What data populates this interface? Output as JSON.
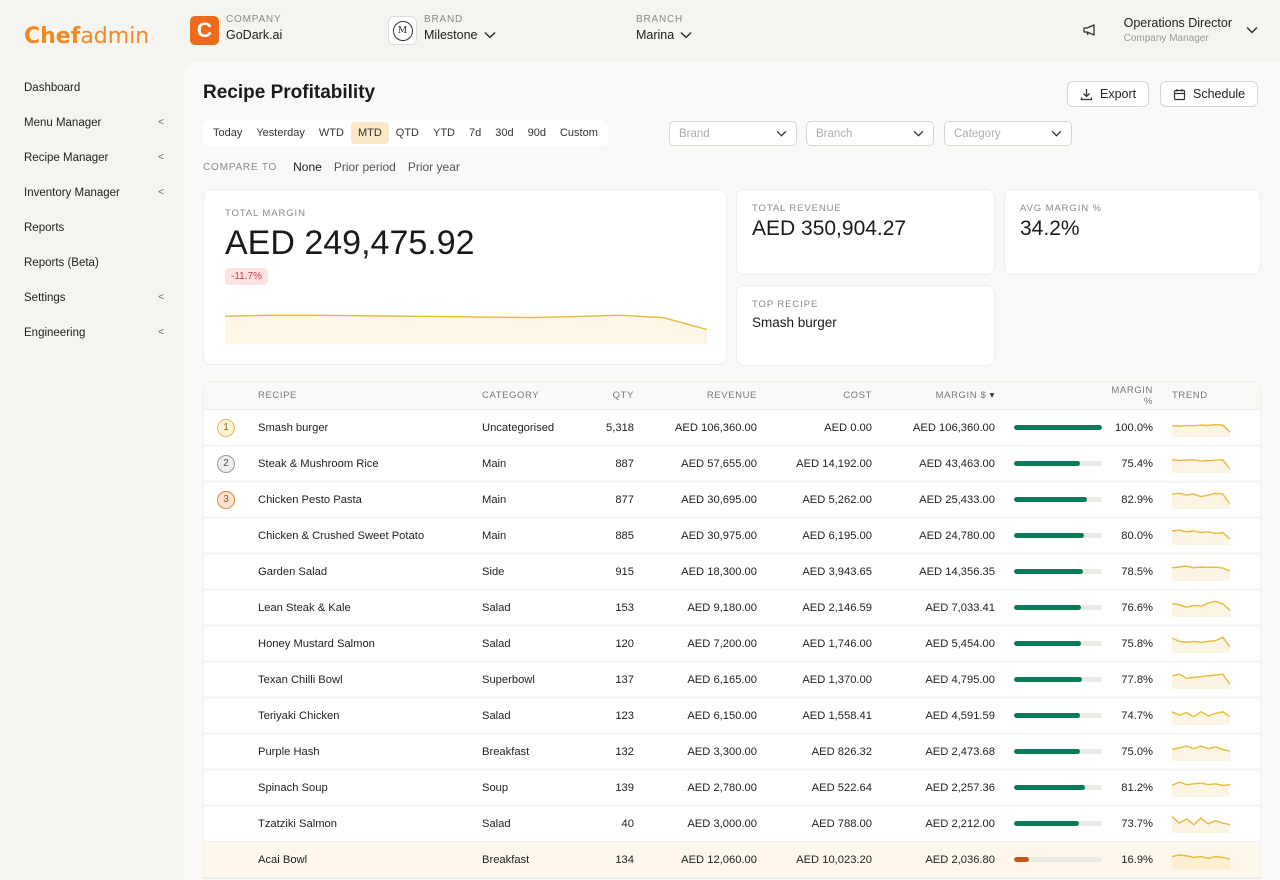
{
  "app": {
    "logo_bold": "Chef",
    "logo_light": "admin"
  },
  "sidebar": {
    "items": [
      {
        "label": "Dashboard",
        "chevron": ""
      },
      {
        "label": "Menu Manager",
        "chevron": "<"
      },
      {
        "label": "Recipe Manager",
        "chevron": "<"
      },
      {
        "label": "Inventory Manager",
        "chevron": "<"
      },
      {
        "label": "Reports",
        "chevron": ""
      },
      {
        "label": "Reports (Beta)",
        "chevron": ""
      },
      {
        "label": "Settings",
        "chevron": "<"
      },
      {
        "label": "Engineering",
        "chevron": "<"
      }
    ]
  },
  "header": {
    "company_label": "COMPANY",
    "company_icon": "C",
    "company_value": "GoDark.ai",
    "brand_label": "BRAND",
    "brand_logo": "M",
    "brand_value": "Milestone",
    "branch_label": "BRANCH",
    "branch_value": "Marina",
    "user_name": "Operations Director",
    "user_role": "Company Manager"
  },
  "page": {
    "title": "Recipe Profitability",
    "export_label": "Export",
    "schedule_label": "Schedule",
    "periods": [
      "Today",
      "Yesterday",
      "WTD",
      "MTD",
      "QTD",
      "YTD",
      "7d",
      "30d",
      "90d",
      "Custom"
    ],
    "active_period": "MTD",
    "filters": {
      "brand_placeholder": "Brand",
      "branch_placeholder": "Branch",
      "category_placeholder": "Category"
    },
    "compare_label": "COMPARE TO",
    "compare_options": [
      "None",
      "Prior period",
      "Prior year"
    ],
    "active_compare": "None"
  },
  "kpis": {
    "total_margin_label": "TOTAL MARGIN",
    "total_margin_value": "AED 249,475.92",
    "total_margin_delta": "-11.7%",
    "total_revenue_label": "TOTAL REVENUE",
    "total_revenue_value": "AED 350,904.27",
    "avg_margin_label": "AVG MARGIN %",
    "avg_margin_value": "34.2%",
    "top_recipe_label": "TOP RECIPE",
    "top_recipe_value": "Smash burger",
    "sparkline": [
      0.58,
      0.6,
      0.6,
      0.59,
      0.58,
      0.57,
      0.56,
      0.55,
      0.57,
      0.6,
      0.55,
      0.3
    ]
  },
  "colors": {
    "accent": "#f08a24",
    "bar_good": "#0b7a5a",
    "bar_low": "#c7561b",
    "spark": "#e9b93a"
  },
  "table": {
    "headers": {
      "recipe": "RECIPE",
      "category": "CATEGORY",
      "qty": "QTY",
      "revenue": "REVENUE",
      "cost": "COST",
      "margin": "MARGIN $",
      "sort_icon": "▾",
      "margin_pct": "MARGIN %",
      "trend": "TREND"
    },
    "rows": [
      {
        "rank": "1",
        "recipe": "Smash burger",
        "category": "Uncategorised",
        "qty": "5,318",
        "revenue": "AED 106,360.00",
        "cost": "AED 0.00",
        "margin": "AED 106,360.00",
        "pct": "100.0%",
        "pct_value": 100.0,
        "trend": [
          0.5,
          0.55,
          0.5,
          0.52,
          0.48,
          0.5,
          0.45,
          0.48,
          0.9
        ]
      },
      {
        "rank": "2",
        "recipe": "Steak & Mushroom Rice",
        "category": "Main",
        "qty": "887",
        "revenue": "AED 57,655.00",
        "cost": "AED 14,192.00",
        "margin": "AED 43,463.00",
        "pct": "75.4%",
        "pct_value": 75.4,
        "trend": [
          0.4,
          0.45,
          0.42,
          0.4,
          0.48,
          0.45,
          0.42,
          0.4,
          0.95
        ]
      },
      {
        "rank": "3",
        "recipe": "Chicken Pesto Pasta",
        "category": "Main",
        "qty": "877",
        "revenue": "AED 30,695.00",
        "cost": "AED 5,262.00",
        "margin": "AED 25,433.00",
        "pct": "82.9%",
        "pct_value": 82.9,
        "trend": [
          0.3,
          0.25,
          0.35,
          0.3,
          0.45,
          0.35,
          0.25,
          0.3,
          0.9
        ]
      },
      {
        "rank": "",
        "recipe": "Chicken & Crushed Sweet Potato",
        "category": "Main",
        "qty": "885",
        "revenue": "AED 30,975.00",
        "cost": "AED 6,195.00",
        "margin": "AED 24,780.00",
        "pct": "80.0%",
        "pct_value": 80.0,
        "trend": [
          0.35,
          0.3,
          0.4,
          0.35,
          0.45,
          0.4,
          0.5,
          0.45,
          0.85
        ]
      },
      {
        "rank": "",
        "recipe": "Garden Salad",
        "category": "Side",
        "qty": "915",
        "revenue": "AED 18,300.00",
        "cost": "AED 3,943.65",
        "margin": "AED 14,356.35",
        "pct": "78.5%",
        "pct_value": 78.5,
        "trend": [
          0.4,
          0.35,
          0.3,
          0.4,
          0.35,
          0.38,
          0.36,
          0.42,
          0.6
        ]
      },
      {
        "rank": "",
        "recipe": "Lean Steak & Kale",
        "category": "Salad",
        "qty": "153",
        "revenue": "AED 9,180.00",
        "cost": "AED 2,146.59",
        "margin": "AED 7,033.41",
        "pct": "76.6%",
        "pct_value": 76.6,
        "trend": [
          0.4,
          0.45,
          0.6,
          0.5,
          0.55,
          0.35,
          0.25,
          0.4,
          0.8
        ]
      },
      {
        "rank": "",
        "recipe": "Honey Mustard Salmon",
        "category": "Salad",
        "qty": "120",
        "revenue": "AED 7,200.00",
        "cost": "AED 1,746.00",
        "margin": "AED 5,454.00",
        "pct": "75.8%",
        "pct_value": 75.8,
        "trend": [
          0.3,
          0.5,
          0.55,
          0.5,
          0.55,
          0.5,
          0.45,
          0.25,
          0.85
        ]
      },
      {
        "rank": "",
        "recipe": "Texan Chilli Bowl",
        "category": "Superbowl",
        "qty": "137",
        "revenue": "AED 6,165.00",
        "cost": "AED 1,370.00",
        "margin": "AED 4,795.00",
        "pct": "77.8%",
        "pct_value": 77.8,
        "trend": [
          0.4,
          0.3,
          0.55,
          0.5,
          0.45,
          0.4,
          0.35,
          0.3,
          0.9
        ]
      },
      {
        "rank": "",
        "recipe": "Teriyaki Chicken",
        "category": "Salad",
        "qty": "123",
        "revenue": "AED 6,150.00",
        "cost": "AED 1,558.41",
        "margin": "AED 4,591.59",
        "pct": "74.7%",
        "pct_value": 74.7,
        "trend": [
          0.4,
          0.6,
          0.45,
          0.7,
          0.4,
          0.65,
          0.5,
          0.4,
          0.7
        ]
      },
      {
        "rank": "",
        "recipe": "Purple Hash",
        "category": "Breakfast",
        "qty": "132",
        "revenue": "AED 3,300.00",
        "cost": "AED 826.32",
        "margin": "AED 2,473.68",
        "pct": "75.0%",
        "pct_value": 75.0,
        "trend": [
          0.5,
          0.4,
          0.3,
          0.45,
          0.3,
          0.45,
          0.35,
          0.5,
          0.6
        ]
      },
      {
        "rank": "",
        "recipe": "Spinach Soup",
        "category": "Soup",
        "qty": "139",
        "revenue": "AED 2,780.00",
        "cost": "AED 522.64",
        "margin": "AED 2,257.36",
        "pct": "81.2%",
        "pct_value": 81.2,
        "trend": [
          0.5,
          0.3,
          0.45,
          0.4,
          0.35,
          0.45,
          0.4,
          0.5,
          0.45
        ]
      },
      {
        "rank": "",
        "recipe": "Tzatziki Salmon",
        "category": "Salad",
        "qty": "40",
        "revenue": "AED 3,000.00",
        "cost": "AED 788.00",
        "margin": "AED 2,212.00",
        "pct": "73.7%",
        "pct_value": 73.7,
        "trend": [
          0.2,
          0.6,
          0.35,
          0.7,
          0.3,
          0.65,
          0.45,
          0.6,
          0.7
        ]
      },
      {
        "rank": "",
        "recipe": "Acai Bowl",
        "category": "Breakfast",
        "qty": "134",
        "revenue": "AED 12,060.00",
        "cost": "AED 10,023.20",
        "margin": "AED 2,036.80",
        "pct": "16.9%",
        "pct_value": 16.9,
        "low": true,
        "trend": [
          0.45,
          0.35,
          0.4,
          0.5,
          0.45,
          0.55,
          0.45,
          0.5,
          0.6
        ]
      }
    ]
  }
}
